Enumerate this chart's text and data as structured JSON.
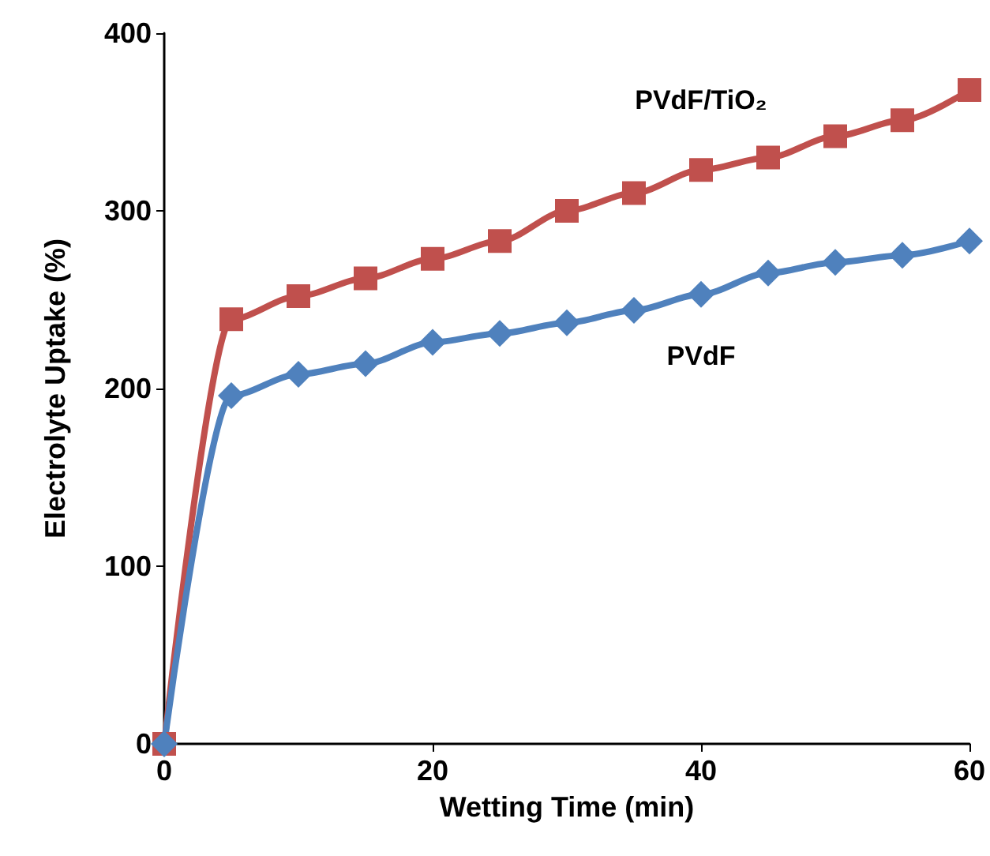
{
  "chart_data": {
    "type": "line",
    "xlabel": "Wetting Time (min)",
    "ylabel": "Electrolyte Uptake (%)",
    "x": [
      0,
      5,
      10,
      15,
      20,
      25,
      30,
      35,
      40,
      45,
      50,
      55,
      60
    ],
    "series": [
      {
        "name": "PVdF/TiO₂",
        "color": "#c0504d",
        "marker": "square",
        "values": [
          0,
          239,
          252,
          262,
          273,
          283,
          300,
          310,
          323,
          330,
          342,
          351,
          368
        ]
      },
      {
        "name": "PVdF",
        "color": "#4f81bd",
        "marker": "diamond",
        "values": [
          0,
          196,
          208,
          214,
          226,
          231,
          237,
          244,
          253,
          265,
          271,
          275,
          283
        ]
      }
    ],
    "xlim": [
      0,
      60
    ],
    "xticks": [
      0,
      20,
      40,
      60
    ],
    "ylim": [
      0,
      400
    ],
    "yticks": [
      0,
      100,
      200,
      300,
      400
    ],
    "grid": false,
    "legend": false,
    "line_style": "solid"
  }
}
